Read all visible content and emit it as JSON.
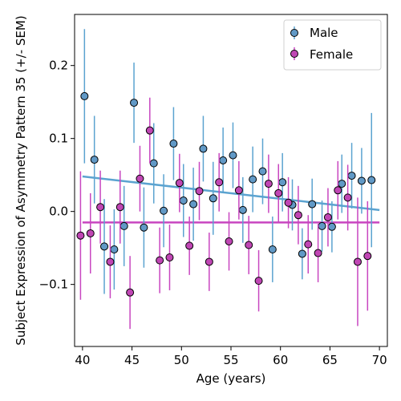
{
  "chart_data": {
    "type": "scatter",
    "xlabel": "Age (years)",
    "ylabel": "Subject Expression of Asymmetry Pattern 35 (+/- SEM)",
    "xlim": [
      39.2,
      70.8
    ],
    "ylim": [
      -0.185,
      0.27
    ],
    "xticks": [
      40,
      45,
      50,
      55,
      60,
      65,
      70
    ],
    "yticks": [
      -0.1,
      0.0,
      0.1,
      0.2
    ],
    "ytick_labels": [
      "−0.1",
      "0.0",
      "0.1",
      "0.2"
    ],
    "grid": false,
    "legend_position": "top-right",
    "series": [
      {
        "name": "Male",
        "color": "#5ba3d0",
        "marker_face": "#6199c6",
        "fit_line": [
          [
            40,
            0.048
          ],
          [
            70,
            0.002
          ]
        ],
        "points": [
          {
            "x": 40.2,
            "y": 0.158,
            "err": 0.092
          },
          {
            "x": 41.2,
            "y": 0.071,
            "err": 0.06
          },
          {
            "x": 42.2,
            "y": -0.048,
            "err": 0.065
          },
          {
            "x": 43.2,
            "y": -0.052,
            "err": 0.055
          },
          {
            "x": 44.2,
            "y": -0.02,
            "err": 0.055
          },
          {
            "x": 45.2,
            "y": 0.149,
            "err": 0.055
          },
          {
            "x": 46.2,
            "y": -0.022,
            "err": 0.055
          },
          {
            "x": 47.2,
            "y": 0.066,
            "err": 0.055
          },
          {
            "x": 48.2,
            "y": 0.001,
            "err": 0.05
          },
          {
            "x": 49.2,
            "y": 0.093,
            "err": 0.05
          },
          {
            "x": 50.2,
            "y": 0.015,
            "err": 0.05
          },
          {
            "x": 51.2,
            "y": 0.01,
            "err": 0.05
          },
          {
            "x": 52.2,
            "y": 0.086,
            "err": 0.045
          },
          {
            "x": 53.2,
            "y": 0.018,
            "err": 0.05
          },
          {
            "x": 54.2,
            "y": 0.07,
            "err": 0.045
          },
          {
            "x": 55.2,
            "y": 0.077,
            "err": 0.045
          },
          {
            "x": 56.2,
            "y": 0.002,
            "err": 0.045
          },
          {
            "x": 57.2,
            "y": 0.044,
            "err": 0.045
          },
          {
            "x": 58.2,
            "y": 0.055,
            "err": 0.045
          },
          {
            "x": 59.2,
            "y": -0.052,
            "err": 0.045
          },
          {
            "x": 60.2,
            "y": 0.04,
            "err": 0.04
          },
          {
            "x": 61.2,
            "y": 0.009,
            "err": 0.035
          },
          {
            "x": 62.2,
            "y": -0.058,
            "err": 0.035
          },
          {
            "x": 63.2,
            "y": 0.01,
            "err": 0.035
          },
          {
            "x": 64.2,
            "y": -0.02,
            "err": 0.035
          },
          {
            "x": 65.2,
            "y": -0.021,
            "err": 0.035
          },
          {
            "x": 66.2,
            "y": 0.038,
            "err": 0.04
          },
          {
            "x": 67.2,
            "y": 0.049,
            "err": 0.045
          },
          {
            "x": 68.2,
            "y": 0.042,
            "err": 0.045
          },
          {
            "x": 69.2,
            "y": 0.043,
            "err": 0.092
          }
        ]
      },
      {
        "name": "Female",
        "color": "#c846c0",
        "marker_face": "#c046b4",
        "fit_line": [
          [
            40,
            -0.015
          ],
          [
            70,
            -0.015
          ]
        ],
        "points": [
          {
            "x": 39.8,
            "y": -0.033,
            "err": 0.088
          },
          {
            "x": 40.8,
            "y": -0.03,
            "err": 0.055
          },
          {
            "x": 41.8,
            "y": 0.006,
            "err": 0.05
          },
          {
            "x": 42.8,
            "y": -0.069,
            "err": 0.05
          },
          {
            "x": 43.8,
            "y": 0.006,
            "err": 0.05
          },
          {
            "x": 44.8,
            "y": -0.111,
            "err": 0.05
          },
          {
            "x": 45.8,
            "y": 0.045,
            "err": 0.045
          },
          {
            "x": 46.8,
            "y": 0.111,
            "err": 0.045
          },
          {
            "x": 47.8,
            "y": -0.067,
            "err": 0.045
          },
          {
            "x": 48.8,
            "y": -0.063,
            "err": 0.045
          },
          {
            "x": 49.8,
            "y": 0.039,
            "err": 0.04
          },
          {
            "x": 50.8,
            "y": -0.047,
            "err": 0.04
          },
          {
            "x": 51.8,
            "y": 0.028,
            "err": 0.04
          },
          {
            "x": 52.8,
            "y": -0.069,
            "err": 0.04
          },
          {
            "x": 53.8,
            "y": 0.04,
            "err": 0.04
          },
          {
            "x": 54.8,
            "y": -0.041,
            "err": 0.04
          },
          {
            "x": 55.8,
            "y": 0.029,
            "err": 0.04
          },
          {
            "x": 56.8,
            "y": -0.046,
            "err": 0.04
          },
          {
            "x": 57.8,
            "y": -0.095,
            "err": 0.042
          },
          {
            "x": 58.8,
            "y": 0.038,
            "err": 0.04
          },
          {
            "x": 59.8,
            "y": 0.025,
            "err": 0.04
          },
          {
            "x": 60.8,
            "y": 0.012,
            "err": 0.035
          },
          {
            "x": 61.8,
            "y": -0.005,
            "err": 0.04
          },
          {
            "x": 62.8,
            "y": -0.045,
            "err": 0.04
          },
          {
            "x": 63.8,
            "y": -0.057,
            "err": 0.04
          },
          {
            "x": 64.8,
            "y": -0.008,
            "err": 0.04
          },
          {
            "x": 65.8,
            "y": 0.029,
            "err": 0.04
          },
          {
            "x": 66.8,
            "y": 0.019,
            "err": 0.045
          },
          {
            "x": 67.8,
            "y": -0.069,
            "err": 0.088
          },
          {
            "x": 68.8,
            "y": -0.061,
            "err": 0.075
          }
        ]
      }
    ]
  }
}
